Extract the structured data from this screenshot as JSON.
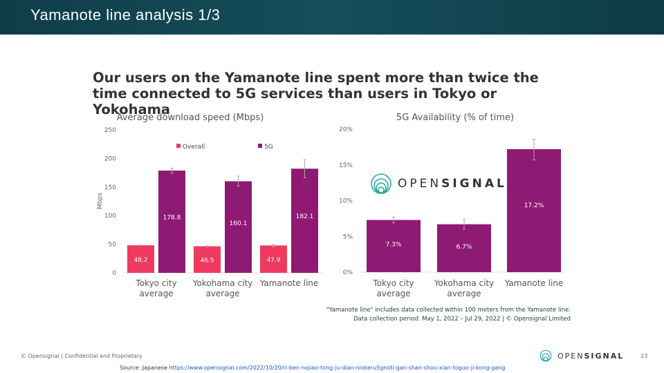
{
  "header": {
    "title": "Yamanote line analysis 1/3"
  },
  "headline": "Our users on the Yamanote line spent more than twice the time connected to 5G services than users in Tokyo or Yokohama",
  "chart_data": [
    {
      "type": "bar",
      "title": "Average download speed (Mbps)",
      "ylabel": "Mbps",
      "xlabel": "",
      "ylim": [
        0,
        250
      ],
      "yticks": [
        "0",
        "50",
        "100",
        "150",
        "200",
        "250"
      ],
      "categories": [
        [
          "Tokyo city",
          "average"
        ],
        [
          "Yokohama city",
          "average"
        ],
        [
          "Yamanote line"
        ]
      ],
      "legend_position": "top",
      "series": [
        {
          "name": "Overall",
          "color": "#ee3a5e",
          "values": [
            48.2,
            46.5,
            47.9
          ],
          "labels": [
            "48.2",
            "46.5",
            "47.9"
          ],
          "error": [
            [
              47.5,
              48.8
            ],
            [
              45.8,
              47.2
            ],
            [
              45.5,
              50.0
            ]
          ]
        },
        {
          "name": "5G",
          "color": "#8e1a73",
          "values": [
            178.8,
            160.1,
            182.1
          ],
          "labels": [
            "178.8",
            "160.1",
            "182.1"
          ],
          "error": [
            [
              174,
              183
            ],
            [
              152,
              169
            ],
            [
              166,
              198
            ]
          ]
        }
      ]
    },
    {
      "type": "bar",
      "title": "5G Availability (% of time)",
      "ylabel": "",
      "xlabel": "",
      "ylim": [
        0,
        20
      ],
      "yticks": [
        "0%",
        "5%",
        "10%",
        "15%",
        "20%"
      ],
      "categories": [
        [
          "Tokyo city",
          "average"
        ],
        [
          "Yokohama city",
          "average"
        ],
        [
          "Yamanote line"
        ]
      ],
      "series": [
        {
          "color": "#8e1a73",
          "values": [
            7.3,
            6.7,
            17.2
          ],
          "labels": [
            "7.3%",
            "6.7%",
            "17.2%"
          ],
          "error": [
            [
              6.9,
              7.7
            ],
            [
              6.0,
              7.4
            ],
            [
              15.7,
              18.6
            ]
          ]
        }
      ]
    }
  ],
  "logo_text": {
    "light": "OPEN",
    "bold": "SIGNAL"
  },
  "note": {
    "line1": "\"Yamanote line\" includes data collected within 100 meters from the Yamanote line.",
    "line2": "Data collection period: May 1, 2022 – Jul 29, 2022 | © Opensignal Limited"
  },
  "footer": {
    "copyright": "© Opensignal | Confidential and Proprietary",
    "page": "23",
    "source_prefix": "Source: Japanese ",
    "source_link": "https://www.opensignal.com/2022/10/20/ri-ben-nojiao-tong-ju-dian-niokeru5gnoti-gan-shan-shou-xian-toguo-ji-kong-gang"
  }
}
